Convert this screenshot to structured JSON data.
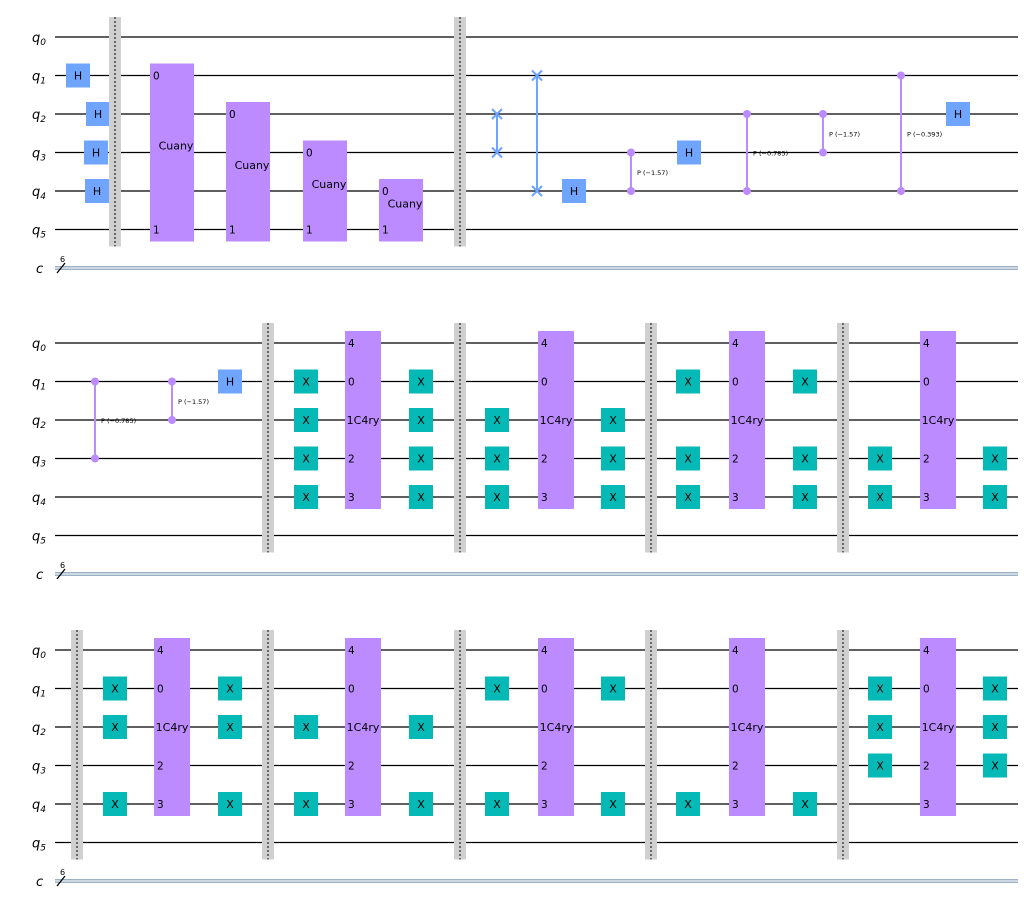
{
  "circuit": {
    "qubit_labels": [
      "q0",
      "q1",
      "q2",
      "q3",
      "q4",
      "q5"
    ],
    "classical_register": {
      "name": "c",
      "size": "6"
    },
    "gate_labels": {
      "hadamard": "H",
      "pauli_x": "X",
      "cuany": "Cuany",
      "c4ry": "1C4ry",
      "phase_prefix": "P"
    },
    "rows": [
      {
        "name": "row-1",
        "ops": [
          {
            "type": "H",
            "qubit": 1
          },
          {
            "type": "H",
            "qubit": 2
          },
          {
            "type": "H",
            "qubit": 3
          },
          {
            "type": "H",
            "qubit": 4
          },
          {
            "type": "barrier"
          },
          {
            "type": "cuany",
            "top": 1,
            "bottom": 5,
            "ports": [
              "0",
              "1"
            ]
          },
          {
            "type": "cuany",
            "top": 2,
            "bottom": 5,
            "ports": [
              "0",
              "1"
            ]
          },
          {
            "type": "cuany",
            "top": 3,
            "bottom": 5,
            "ports": [
              "0",
              "1"
            ]
          },
          {
            "type": "cuany",
            "top": 4,
            "bottom": 5,
            "ports": [
              "0",
              "1"
            ]
          },
          {
            "type": "barrier"
          },
          {
            "type": "swap",
            "qubits": [
              2,
              3
            ]
          },
          {
            "type": "swap",
            "qubits": [
              1,
              4
            ]
          },
          {
            "type": "H",
            "qubit": 4
          },
          {
            "type": "cp",
            "qubits": [
              3,
              4
            ],
            "param": "(−1.57)"
          },
          {
            "type": "H",
            "qubit": 3
          },
          {
            "type": "cp",
            "qubits": [
              2,
              4
            ],
            "param": "(−0.785)"
          },
          {
            "type": "cp",
            "qubits": [
              2,
              3
            ],
            "param": "(−1.57)"
          },
          {
            "type": "cp",
            "qubits": [
              1,
              4
            ],
            "param": "(−0.393)"
          },
          {
            "type": "H",
            "qubit": 2
          }
        ]
      },
      {
        "name": "row-2",
        "ops": [
          {
            "type": "cp",
            "qubits": [
              1,
              3
            ],
            "param": "(−0.785)"
          },
          {
            "type": "cp",
            "qubits": [
              1,
              2
            ],
            "param": "(−1.57)"
          },
          {
            "type": "H",
            "qubit": 1
          },
          {
            "type": "barrier"
          },
          {
            "type": "xblock",
            "xs": [
              1,
              2,
              3,
              4
            ]
          },
          {
            "type": "barrier"
          },
          {
            "type": "xblock",
            "xs": [
              2,
              3,
              4
            ]
          },
          {
            "type": "barrier"
          },
          {
            "type": "xblock",
            "xs": [
              1,
              3,
              4
            ]
          },
          {
            "type": "barrier"
          },
          {
            "type": "xblock",
            "xs": [
              3,
              4
            ]
          }
        ]
      },
      {
        "name": "row-3",
        "ops": [
          {
            "type": "barrier"
          },
          {
            "type": "xblock",
            "xs": [
              1,
              2,
              4
            ]
          },
          {
            "type": "barrier"
          },
          {
            "type": "xblock",
            "xs": [
              2,
              4
            ]
          },
          {
            "type": "barrier"
          },
          {
            "type": "xblock",
            "xs": [
              1,
              4
            ]
          },
          {
            "type": "barrier"
          },
          {
            "type": "xblock",
            "xs": [
              4
            ]
          },
          {
            "type": "barrier"
          },
          {
            "type": "xblock",
            "xs": [
              1,
              2,
              3
            ]
          }
        ]
      }
    ],
    "c4ry_ports": [
      "4",
      "0",
      "2",
      "3"
    ]
  }
}
